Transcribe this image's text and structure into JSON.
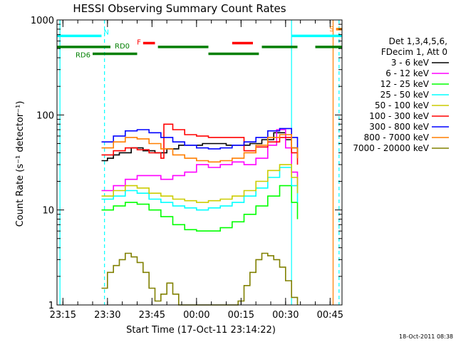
{
  "chart_data": {
    "type": "line",
    "title": "HESSI Observing Summary Count Rates",
    "xlabel": "Start Time (17-Oct-11 23:14:22)",
    "ylabel": "Count Rate (s⁻¹ detector⁻¹)",
    "yscale": "log",
    "ylim": [
      1,
      1000
    ],
    "xlim_minutes": [
      -1,
      95
    ],
    "x_tick_labels": [
      "23:15",
      "23:30",
      "23:45",
      "00:00",
      "00:15",
      "00:30",
      "00:45"
    ],
    "x_tick_minutes": [
      1,
      16,
      31,
      46,
      61,
      76,
      91
    ],
    "y_tick_labels": [
      "1",
      "10",
      "100",
      "1000"
    ],
    "y_tick_values": [
      1,
      10,
      100,
      1000
    ],
    "legend_header": [
      "Det 1,3,4,5,6,",
      "FDecim 1, Att 0"
    ],
    "legend_placement": "right",
    "timestamp": "18-Oct-2011 08:38",
    "series": [
      {
        "name": "3 - 6 keV",
        "color": "#000000",
        "x": [
          14,
          16,
          18,
          20,
          24,
          28,
          32,
          36,
          40,
          44,
          48,
          52,
          56,
          60,
          64,
          68,
          72,
          76,
          78,
          80
        ],
        "y": [
          33,
          35,
          38,
          40,
          45,
          42,
          40,
          44,
          48,
          48,
          50,
          50,
          48,
          48,
          50,
          55,
          65,
          55,
          45,
          35
        ]
      },
      {
        "name": "6 - 12 keV",
        "color": "#ff00ff",
        "x": [
          14,
          18,
          22,
          26,
          30,
          34,
          38,
          42,
          46,
          50,
          54,
          58,
          62,
          66,
          70,
          73,
          76,
          78,
          80
        ],
        "y": [
          16,
          18,
          21,
          23,
          23,
          21,
          23,
          25,
          30,
          28,
          30,
          32,
          30,
          35,
          48,
          70,
          45,
          25,
          18
        ]
      },
      {
        "name": "12 - 25 keV",
        "color": "#00ff00",
        "x": [
          14,
          18,
          22,
          26,
          30,
          34,
          38,
          42,
          46,
          50,
          54,
          58,
          62,
          66,
          70,
          74,
          78,
          80
        ],
        "y": [
          10,
          11,
          12,
          11.5,
          10,
          8.5,
          7,
          6.2,
          6,
          6,
          6.5,
          7.5,
          9,
          11,
          14,
          18,
          12,
          8
        ]
      },
      {
        "name": "25 - 50 keV",
        "color": "#00ffff",
        "x": [
          14,
          18,
          22,
          26,
          30,
          34,
          38,
          42,
          46,
          50,
          54,
          58,
          62,
          66,
          70,
          74,
          78,
          80
        ],
        "y": [
          13,
          14,
          16,
          15,
          13,
          12,
          11,
          10.5,
          10,
          10.5,
          11,
          12,
          14,
          17,
          22,
          28,
          18,
          12
        ]
      },
      {
        "name": "50 - 100 keV",
        "color": "#cccc00",
        "x": [
          14,
          18,
          22,
          26,
          30,
          34,
          38,
          42,
          46,
          50,
          54,
          58,
          62,
          66,
          70,
          74,
          78,
          80
        ],
        "y": [
          14,
          16,
          18,
          17,
          15,
          14,
          13,
          12.5,
          12,
          12.5,
          13,
          14,
          16,
          20,
          26,
          30,
          22,
          15
        ]
      },
      {
        "name": "100 - 300 keV",
        "color": "#ff0000",
        "x": [
          14,
          18,
          22,
          26,
          30,
          34,
          35,
          38,
          42,
          46,
          50,
          54,
          58,
          61,
          62,
          66,
          70,
          74,
          78,
          80
        ],
        "y": [
          38,
          42,
          45,
          43,
          40,
          35,
          80,
          70,
          62,
          60,
          58,
          58,
          58,
          58,
          42,
          46,
          52,
          58,
          40,
          30
        ]
      },
      {
        "name": "300 - 800 keV",
        "color": "#0000ff",
        "x": [
          14,
          18,
          22,
          26,
          30,
          34,
          38,
          42,
          46,
          50,
          54,
          58,
          62,
          66,
          70,
          74,
          78,
          80
        ],
        "y": [
          52,
          60,
          68,
          70,
          65,
          58,
          52,
          48,
          45,
          44,
          45,
          48,
          52,
          58,
          68,
          72,
          58,
          45
        ]
      },
      {
        "name": "800 - 7000 keV",
        "color": "#ff7f00",
        "x": [
          14,
          18,
          22,
          26,
          30,
          34,
          38,
          42,
          46,
          50,
          54,
          58,
          62,
          66,
          70,
          74,
          78,
          80
        ],
        "y": [
          45,
          52,
          58,
          56,
          50,
          44,
          38,
          35,
          33,
          32,
          33,
          35,
          40,
          48,
          58,
          62,
          45,
          35
        ]
      },
      {
        "name": "7000 - 20000 keV",
        "color": "#808000",
        "x": [
          14,
          16,
          18,
          20,
          22,
          24,
          26,
          28,
          30,
          32,
          34,
          36,
          38,
          40,
          42,
          44,
          46,
          48,
          50,
          52,
          54,
          56,
          58,
          60,
          62,
          64,
          66,
          68,
          70,
          72,
          74,
          76,
          78,
          80
        ],
        "y": [
          1.5,
          2.2,
          2.6,
          3,
          3.5,
          3.2,
          2.8,
          2.2,
          1.5,
          1.1,
          1.3,
          1.7,
          1.3,
          1,
          1,
          1,
          1,
          1,
          1,
          1,
          1,
          1,
          1,
          1.1,
          1.6,
          2.2,
          3,
          3.5,
          3.3,
          3,
          2.5,
          1.8,
          1.2,
          1
        ]
      }
    ],
    "state_bars": [
      {
        "label": "N",
        "color": "#00ffff",
        "row_value": 680,
        "segments": [
          [
            -1,
            14
          ]
        ]
      },
      {
        "label": "",
        "color": "#00ffff",
        "row_value": 680,
        "segments": [
          [
            78,
            95
          ]
        ]
      },
      {
        "label": "F",
        "color": "#ff0000",
        "row_value": 570,
        "segments": [
          [
            28,
            32
          ],
          [
            58,
            65
          ]
        ]
      },
      {
        "label": "RD0",
        "color": "#007f00",
        "row_value": 520,
        "segments": [
          [
            -1,
            17
          ],
          [
            33,
            50
          ],
          [
            68,
            80
          ],
          [
            86,
            95
          ]
        ]
      },
      {
        "label": "RD6",
        "color": "#007f00",
        "row_value": 440,
        "segments": [
          [
            11,
            26
          ],
          [
            50,
            67
          ]
        ]
      },
      {
        "label": "S",
        "color": "#ff7f00",
        "row_value": 800,
        "segments": [
          [
            93,
            95
          ]
        ]
      }
    ],
    "vertical_lines": [
      {
        "x": 0,
        "color": "#00ffff",
        "style": "solid"
      },
      {
        "x": 15,
        "color": "#00ffff",
        "style": "dashed"
      },
      {
        "x": 78,
        "color": "#00ffff",
        "style": "solid"
      },
      {
        "x": 92,
        "color": "#ff7f00",
        "style": "solid"
      },
      {
        "x": 94,
        "color": "#00ffff",
        "style": "dashed"
      }
    ]
  }
}
